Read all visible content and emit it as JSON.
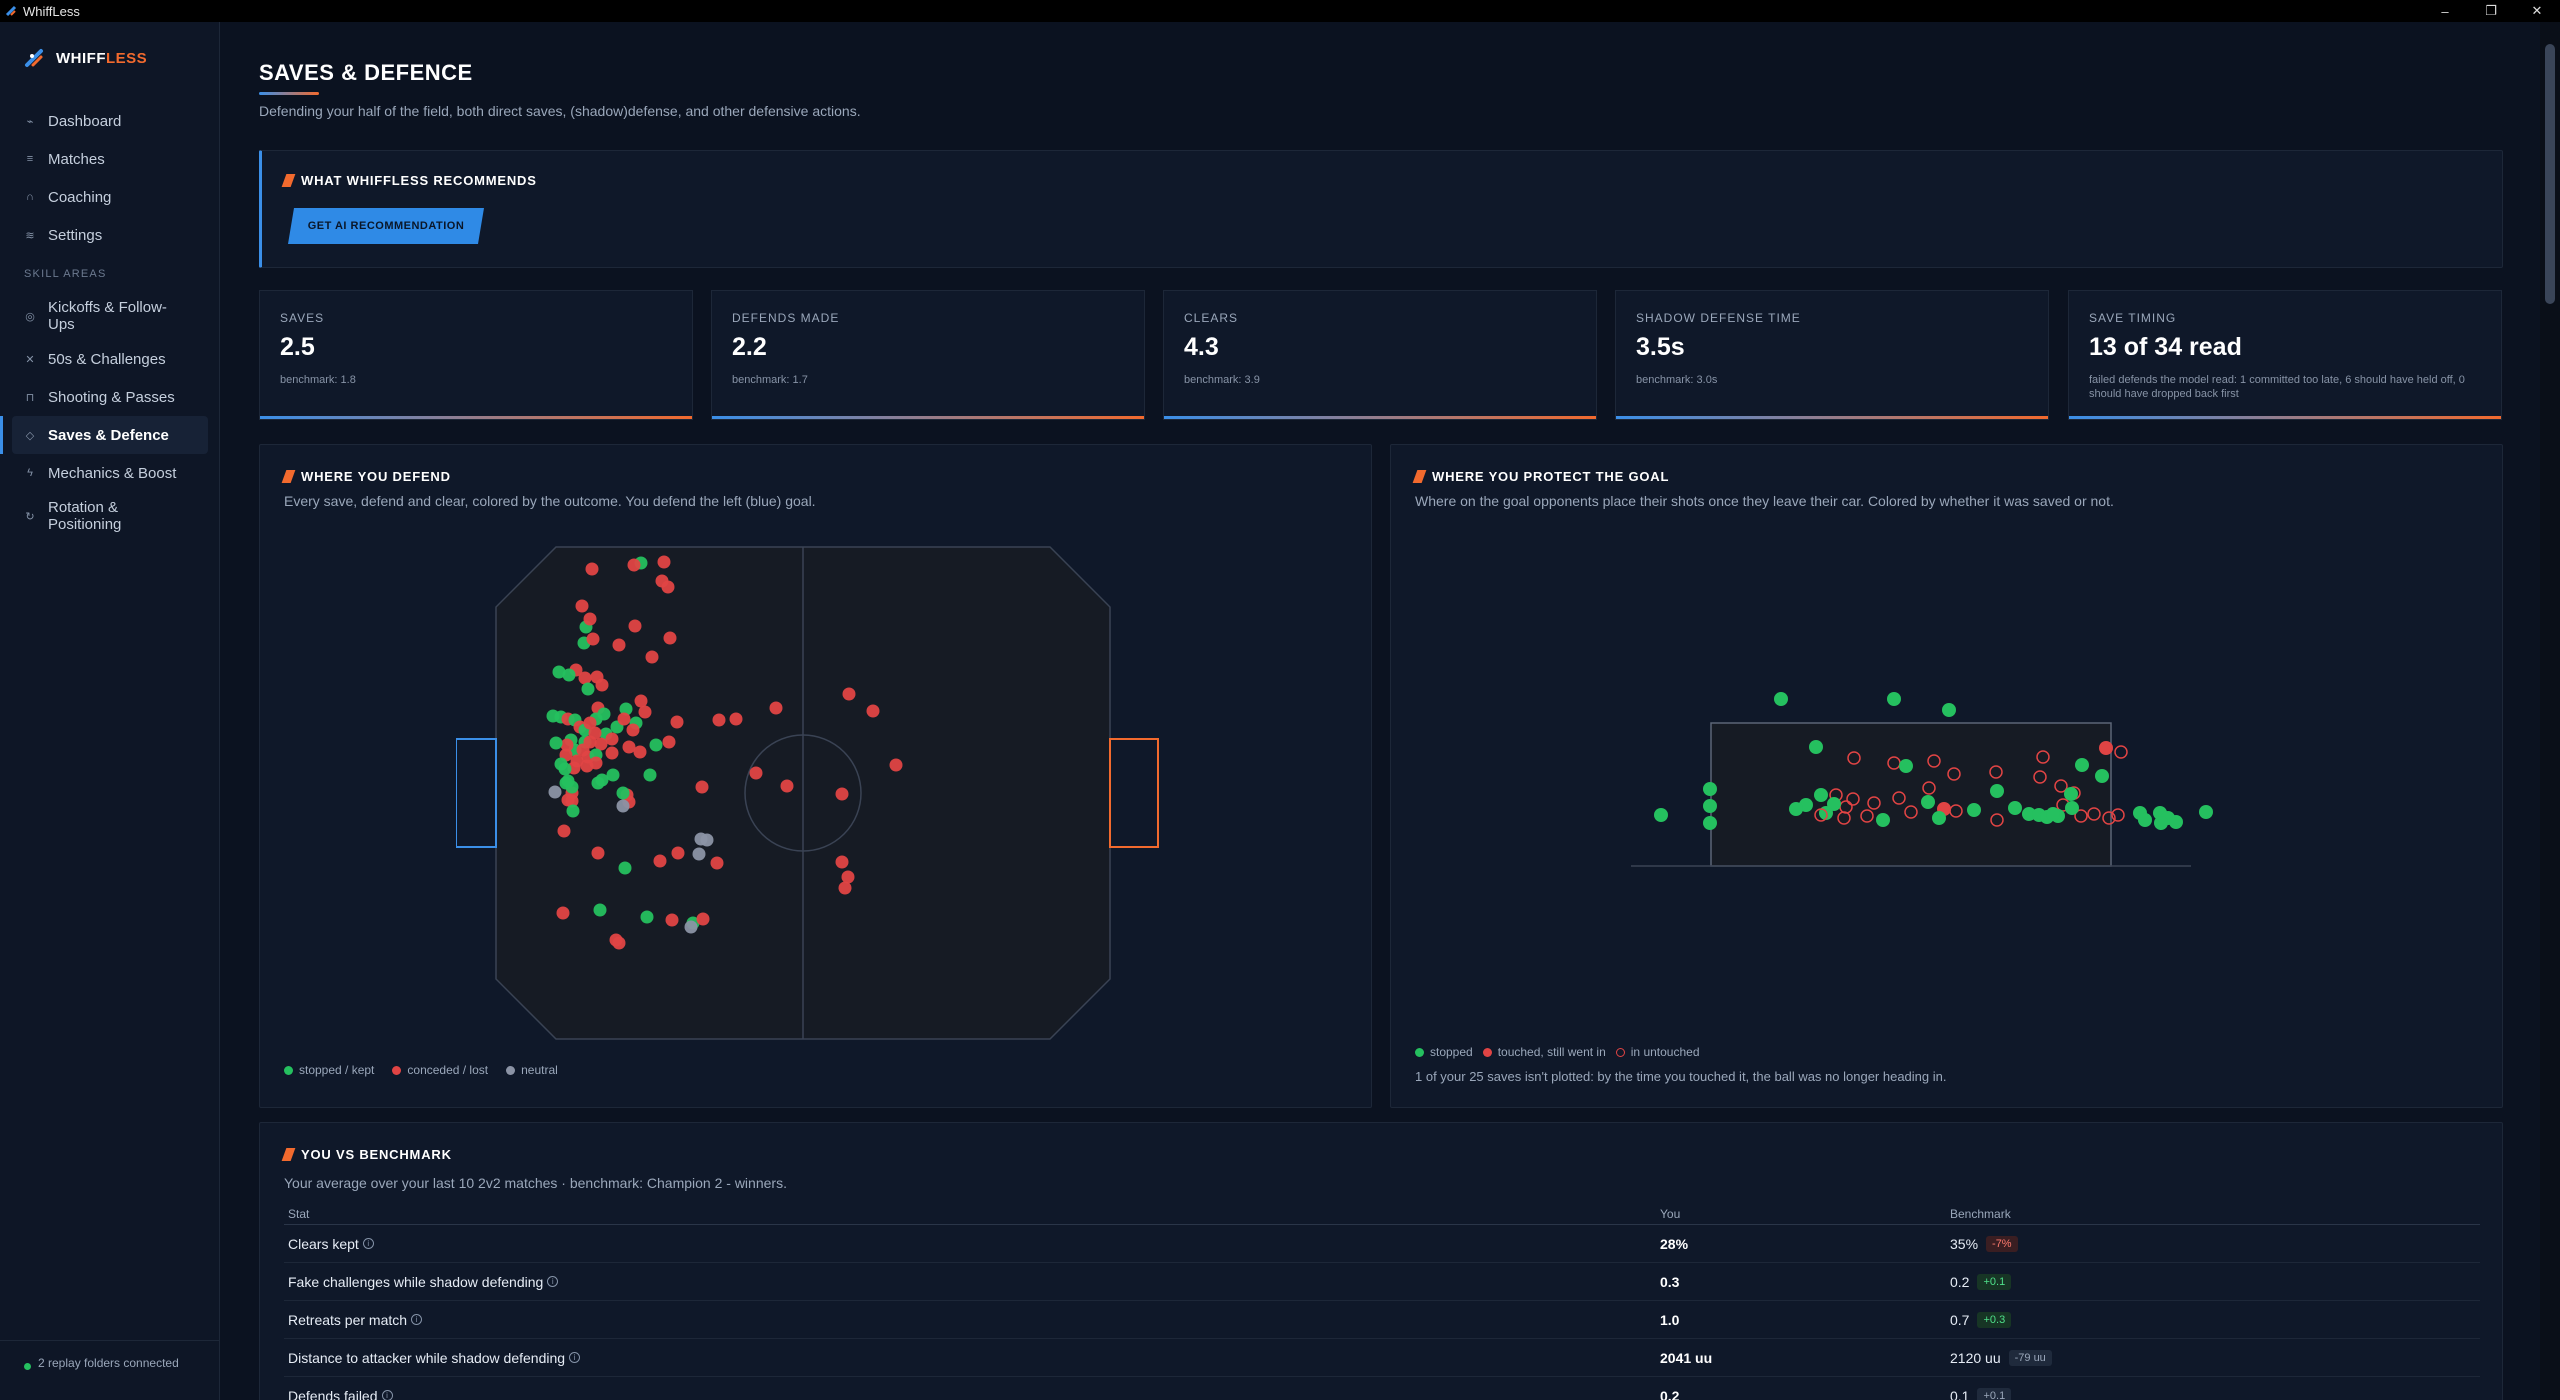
{
  "window": {
    "title": "WhiffLess",
    "minimize": "–",
    "restore": "❐",
    "close": "✕"
  },
  "brand": {
    "name_main": "WHIFF",
    "name_accent": "LESS"
  },
  "sidebar": {
    "items_top": [
      {
        "label": "Dashboard",
        "icon": "chart-line-icon",
        "glyph": "⌁"
      },
      {
        "label": "Matches",
        "icon": "list-icon",
        "glyph": "≡"
      },
      {
        "label": "Coaching",
        "icon": "headset-icon",
        "glyph": "∩"
      },
      {
        "label": "Settings",
        "icon": "sliders-icon",
        "glyph": "≋"
      }
    ],
    "section_label": "SKILL AREAS",
    "items_skills": [
      {
        "label": "Kickoffs & Follow-Ups",
        "icon": "target-icon",
        "glyph": "◎"
      },
      {
        "label": "50s & Challenges",
        "icon": "cross-swords-icon",
        "glyph": "✕"
      },
      {
        "label": "Shooting & Passes",
        "icon": "goal-icon",
        "glyph": "⊓"
      },
      {
        "label": "Saves & Defence",
        "icon": "shield-icon",
        "glyph": "◇"
      },
      {
        "label": "Mechanics & Boost",
        "icon": "bolt-icon",
        "glyph": "ϟ"
      },
      {
        "label": "Rotation & Positioning",
        "icon": "rotate-icon",
        "glyph": "↻"
      }
    ],
    "footer": "2 replay folders connected"
  },
  "page": {
    "title": "SAVES & DEFENCE",
    "subtitle": "Defending your half of the field, both direct saves, (shadow)defense, and other defensive actions."
  },
  "recommend": {
    "title": "WHAT WHIFFLESS RECOMMENDS",
    "button": "GET AI RECOMMENDATION"
  },
  "stats": [
    {
      "label": "SAVES",
      "value": "2.5",
      "bench": "benchmark: 1.8"
    },
    {
      "label": "DEFENDS MADE",
      "value": "2.2",
      "bench": "benchmark: 1.7"
    },
    {
      "label": "CLEARS",
      "value": "4.3",
      "bench": "benchmark: 3.9"
    },
    {
      "label": "SHADOW DEFENSE TIME",
      "value": "3.5s",
      "bench": "benchmark: 3.0s"
    },
    {
      "label": "SAVE TIMING",
      "value": "13 of 34 read",
      "bench": "failed defends the model read: 1 committed too late, 6 should have held off, 0 should have dropped back first"
    }
  ],
  "defend": {
    "title": "WHERE YOU DEFEND",
    "desc": "Every save, defend and clear, colored by the outcome. You defend the left (blue) goal.",
    "legend": [
      "stopped / kept",
      "conceded / lost",
      "neutral"
    ]
  },
  "protect": {
    "title": "WHERE YOU PROTECT THE GOAL",
    "desc": "Where on the goal opponents place their shots once they leave their car. Colored by whether it was saved or not.",
    "legend": [
      "stopped",
      "touched, still went in",
      "in untouched"
    ],
    "note": "1 of your 25 saves isn't plotted: by the time you touched it, the ball was no longer heading in."
  },
  "colors": {
    "green": "#25c05f",
    "red": "#e04444",
    "gray": "#8b93a5",
    "blue": "#3b8fe8",
    "orange": "#f26a2e"
  },
  "benchmark": {
    "title": "YOU VS BENCHMARK",
    "desc": "Your average over your last 10 2v2 matches · benchmark: Champion 2 - winners.",
    "headers": [
      "Stat",
      "You",
      "Benchmark"
    ],
    "rows": [
      {
        "stat": "Clears kept",
        "you": "28%",
        "bench": "35%",
        "delta": "-7%",
        "kind": "neg"
      },
      {
        "stat": "Fake challenges while shadow defending",
        "you": "0.3",
        "bench": "0.2",
        "delta": "+0.1",
        "kind": "pos"
      },
      {
        "stat": "Retreats per match",
        "you": "1.0",
        "bench": "0.7",
        "delta": "+0.3",
        "kind": "pos"
      },
      {
        "stat": "Distance to attacker while shadow defending",
        "you": "2041 uu",
        "bench": "2120 uu",
        "delta": "-79 uu",
        "kind": "neutral"
      },
      {
        "stat": "Defends failed",
        "you": "0.2",
        "bench": "0.1",
        "delta": "+0.1",
        "kind": "neutral"
      }
    ]
  }
}
